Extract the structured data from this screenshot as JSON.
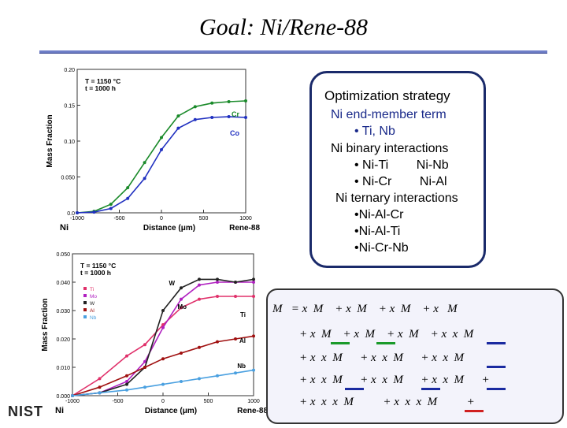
{
  "title": "Goal:  Ni/Rene-88",
  "logo": "NIST",
  "strategy": {
    "heading": "Optimization strategy",
    "lines": [
      "Ni end-member term",
      "• Ti, Nb",
      "Ni binary interactions",
      "• Ni-Ti        Ni-Nb",
      "• Ni-Cr        Ni-Al",
      "Ni ternary interactions",
      "•Ni-Al-Cr",
      "•Ni-Al-Ti",
      "•Ni-Cr-Nb"
    ]
  },
  "equation": {
    "rows": [
      "M   = x  M    + x  M    + x  M    + x   M",
      "+ x  M    + x  M    + x  M    + x  x  M",
      "+ x  x  M      + x  x  M      + x  x  M",
      "+ x  x  M      + x  x  M      + x  x  M      +",
      "+ x  x  x  M          + x  x  x  M          +"
    ],
    "underline_colors": [
      "#1a9a2a",
      "#1a9a2a",
      "#1a2aa0",
      "#1a2aa0",
      "#1a2aa0",
      "#1a2aa0",
      "#1a2aa0",
      "#d02020"
    ]
  },
  "chart_data": [
    {
      "type": "line",
      "legend_position": "top-right",
      "annotation": [
        "T = 1150 °C",
        "t = 1000 h"
      ],
      "ylabel": "Mass Fraction",
      "xlabel": "Distance (μm)",
      "x_end_labels": [
        "Ni",
        "Rene-88"
      ],
      "xlim": [
        -1000,
        1000
      ],
      "ylim": [
        0,
        0.2
      ],
      "xticks": [
        "-1000",
        "-500",
        "0",
        "500",
        "1000"
      ],
      "yticks": [
        "0.0",
        "0.050",
        "0.10",
        "0.15",
        "0.20"
      ],
      "series": [
        {
          "name": "Cr",
          "color": "#1a8a2a",
          "x": [
            -1000,
            -800,
            -600,
            -400,
            -200,
            0,
            200,
            400,
            600,
            800,
            1000
          ],
          "y": [
            0.0,
            0.002,
            0.012,
            0.035,
            0.07,
            0.105,
            0.135,
            0.148,
            0.153,
            0.155,
            0.156
          ]
        },
        {
          "name": "Co",
          "color": "#2030c0",
          "x": [
            -1000,
            -800,
            -600,
            -400,
            -200,
            0,
            200,
            400,
            600,
            800,
            1000
          ],
          "y": [
            0.0,
            0.001,
            0.006,
            0.02,
            0.048,
            0.088,
            0.118,
            0.13,
            0.133,
            0.134,
            0.133
          ]
        }
      ]
    },
    {
      "type": "line",
      "legend_position": "top-left",
      "annotation": [
        "T = 1150 °C",
        "t = 1000 h"
      ],
      "ylabel": "Mass Fraction",
      "xlabel": "Distance (μm)",
      "x_end_labels": [
        "Ni",
        "Rene-88"
      ],
      "xlim": [
        -1000,
        1000
      ],
      "ylim": [
        0,
        0.05
      ],
      "xticks": [
        "-1000",
        "-500",
        "0",
        "500",
        "1000"
      ],
      "yticks": [
        "0.000",
        "0.010",
        "0.020",
        "0.030",
        "0.040",
        "0.050"
      ],
      "series": [
        {
          "name": "Ti",
          "color": "#e0306a",
          "x": [
            -1000,
            -700,
            -400,
            -200,
            0,
            200,
            400,
            600,
            800,
            1000
          ],
          "y": [
            0.0,
            0.006,
            0.014,
            0.018,
            0.025,
            0.031,
            0.034,
            0.035,
            0.035,
            0.035
          ]
        },
        {
          "name": "Mo",
          "color": "#b020c0",
          "x": [
            -1000,
            -700,
            -400,
            -200,
            0,
            200,
            400,
            600,
            800,
            1000
          ],
          "y": [
            0.0,
            0.001,
            0.005,
            0.012,
            0.024,
            0.034,
            0.039,
            0.04,
            0.04,
            0.04
          ]
        },
        {
          "name": "W",
          "color": "#222222",
          "x": [
            -1000,
            -700,
            -400,
            -200,
            0,
            200,
            400,
            600,
            800,
            1000
          ],
          "y": [
            0.0,
            0.001,
            0.004,
            0.01,
            0.03,
            0.038,
            0.041,
            0.041,
            0.04,
            0.041
          ]
        },
        {
          "name": "Al",
          "color": "#a01010",
          "x": [
            -1000,
            -700,
            -400,
            -200,
            0,
            200,
            400,
            600,
            800,
            1000
          ],
          "y": [
            0.0,
            0.003,
            0.007,
            0.01,
            0.013,
            0.015,
            0.017,
            0.019,
            0.02,
            0.021
          ]
        },
        {
          "name": "Nb",
          "color": "#4aa0e0",
          "x": [
            -1000,
            -700,
            -400,
            -200,
            0,
            200,
            400,
            600,
            800,
            1000
          ],
          "y": [
            0.0,
            0.001,
            0.002,
            0.003,
            0.004,
            0.005,
            0.006,
            0.007,
            0.008,
            0.009
          ]
        }
      ],
      "labels_right": [
        "W",
        "Mo",
        "Ti",
        "Al",
        "Nb"
      ]
    }
  ]
}
